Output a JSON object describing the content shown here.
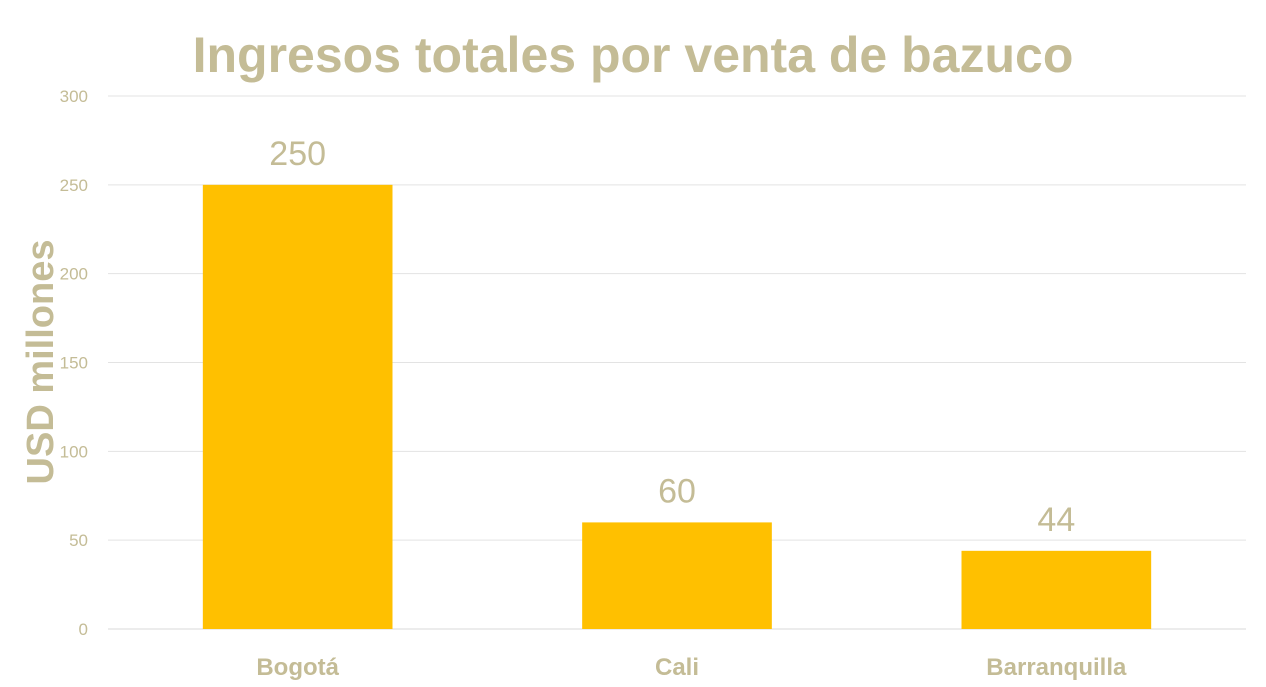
{
  "colors": {
    "bar": "#FFC000",
    "text": "#C4BC96",
    "grid": "#E3E3E3",
    "axis": "#D9D9D9"
  },
  "chart_data": {
    "type": "bar",
    "title": "Ingresos totales por venta de bazuco",
    "xlabel": "",
    "ylabel": "USD millones",
    "categories": [
      "Bogotá",
      "Cali",
      "Barranquilla"
    ],
    "values": [
      250,
      60,
      44
    ],
    "data_labels": [
      "250",
      "60",
      "44"
    ],
    "ylim": [
      0,
      300
    ],
    "yticks": [
      0,
      50,
      100,
      150,
      200,
      250,
      300
    ],
    "ytick_labels": [
      "0",
      "50",
      "100",
      "150",
      "200",
      "250",
      "300"
    ],
    "grid": true,
    "legend": "none"
  }
}
